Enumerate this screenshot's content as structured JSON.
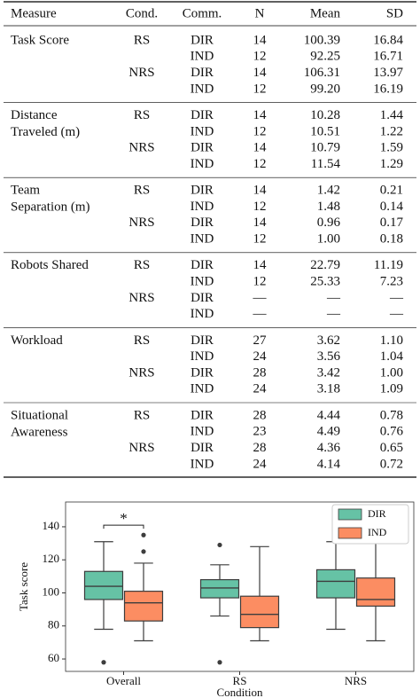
{
  "table": {
    "columns": [
      "Measure",
      "Cond.",
      "Comm.",
      "N",
      "Mean",
      "SD"
    ],
    "measures": [
      {
        "name": [
          "Task Score"
        ],
        "groups": [
          {
            "cond": "RS",
            "rows": [
              [
                "DIR",
                "14",
                "100.39",
                "16.84"
              ],
              [
                "IND",
                "12",
                "92.25",
                "16.71"
              ]
            ]
          },
          {
            "cond": "NRS",
            "rows": [
              [
                "DIR",
                "14",
                "106.31",
                "13.97"
              ],
              [
                "IND",
                "12",
                "99.20",
                "16.19"
              ]
            ]
          }
        ]
      },
      {
        "name": [
          "Distance",
          "Traveled (m)"
        ],
        "groups": [
          {
            "cond": "RS",
            "rows": [
              [
                "DIR",
                "14",
                "10.28",
                "1.44"
              ],
              [
                "IND",
                "12",
                "10.51",
                "1.22"
              ]
            ]
          },
          {
            "cond": "NRS",
            "rows": [
              [
                "DIR",
                "14",
                "10.79",
                "1.59"
              ],
              [
                "IND",
                "12",
                "11.54",
                "1.29"
              ]
            ]
          }
        ]
      },
      {
        "name": [
          "Team",
          "Separation (m)"
        ],
        "groups": [
          {
            "cond": "RS",
            "rows": [
              [
                "DIR",
                "14",
                "1.42",
                "0.21"
              ],
              [
                "IND",
                "12",
                "1.48",
                "0.14"
              ]
            ]
          },
          {
            "cond": "NRS",
            "rows": [
              [
                "DIR",
                "14",
                "0.96",
                "0.17"
              ],
              [
                "IND",
                "12",
                "1.00",
                "0.18"
              ]
            ]
          }
        ]
      },
      {
        "name": [
          "Robots Shared"
        ],
        "groups": [
          {
            "cond": "RS",
            "rows": [
              [
                "DIR",
                "14",
                "22.79",
                "11.19"
              ],
              [
                "IND",
                "12",
                "25.33",
                "7.23"
              ]
            ]
          },
          {
            "cond": "NRS",
            "rows": [
              [
                "DIR",
                "—",
                "—",
                "—"
              ],
              [
                "IND",
                "—",
                "—",
                "—"
              ]
            ]
          }
        ]
      },
      {
        "name": [
          "Workload"
        ],
        "groups": [
          {
            "cond": "RS",
            "rows": [
              [
                "DIR",
                "27",
                "3.62",
                "1.10"
              ],
              [
                "IND",
                "24",
                "3.56",
                "1.04"
              ]
            ]
          },
          {
            "cond": "NRS",
            "rows": [
              [
                "DIR",
                "28",
                "3.42",
                "1.00"
              ],
              [
                "IND",
                "24",
                "3.18",
                "1.09"
              ]
            ]
          }
        ]
      },
      {
        "name": [
          "Situational",
          "Awareness"
        ],
        "groups": [
          {
            "cond": "RS",
            "rows": [
              [
                "DIR",
                "28",
                "4.44",
                "0.78"
              ],
              [
                "IND",
                "23",
                "4.49",
                "0.76"
              ]
            ]
          },
          {
            "cond": "NRS",
            "rows": [
              [
                "DIR",
                "28",
                "4.36",
                "0.65"
              ],
              [
                "IND",
                "24",
                "4.14",
                "0.72"
              ]
            ]
          }
        ]
      }
    ]
  },
  "chart_data": {
    "type": "box",
    "y_label": "Task score",
    "x_label": "Condition",
    "categories": [
      "Overall",
      "RS",
      "NRS"
    ],
    "ylim": [
      52.5,
      155
    ],
    "yticks": [
      60,
      80,
      100,
      120,
      140
    ],
    "legend": "upper right",
    "series": [
      {
        "name": "DIR",
        "color": "#66c2a5",
        "whislo": [
          78,
          86,
          78
        ],
        "q1": [
          96,
          97,
          97
        ],
        "median": [
          104,
          103,
          107
        ],
        "q3": [
          113,
          108,
          114
        ],
        "whishi": [
          131,
          117,
          131
        ],
        "fliers": [
          [
            58
          ],
          [
            58,
            129
          ],
          []
        ]
      },
      {
        "name": "IND",
        "color": "#fc8d62",
        "whislo": [
          71,
          71,
          71
        ],
        "q1": [
          83,
          79,
          92
        ],
        "median": [
          94,
          87,
          96
        ],
        "q3": [
          101,
          98,
          109
        ],
        "whishi": [
          118,
          128,
          135
        ],
        "fliers": [
          [
            125,
            135
          ],
          [],
          []
        ]
      }
    ],
    "annotation": "*"
  }
}
